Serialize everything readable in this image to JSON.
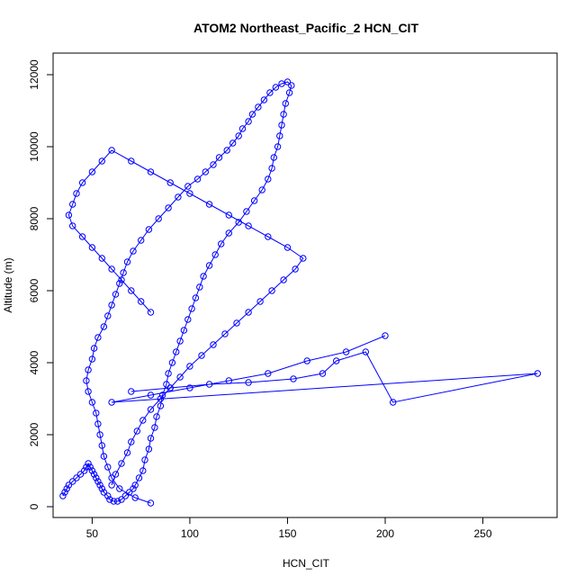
{
  "chart_data": {
    "type": "line",
    "title": "ATOM2 Northeast_Pacific_2 HCN_CIT",
    "xlabel": "HCN_CIT",
    "ylabel": "Altitude (m)",
    "xlim": [
      30,
      288
    ],
    "ylim": [
      -300,
      12600
    ],
    "xticks": [
      50,
      100,
      150,
      200,
      250
    ],
    "yticks": [
      0,
      2000,
      4000,
      6000,
      8000,
      10000,
      12000
    ],
    "grid": false,
    "legend": "none",
    "color": "#0000ff",
    "marker": "open-circle",
    "series": [
      {
        "x": [
          80,
          72,
          64,
          60,
          58,
          56,
          55,
          54,
          53,
          52,
          50,
          48,
          47,
          48,
          50,
          51,
          53,
          56,
          58,
          60,
          62,
          64,
          66,
          68,
          71,
          75,
          79,
          84,
          89,
          94,
          99,
          104,
          108,
          112,
          115,
          119,
          122,
          125,
          127,
          130,
          132,
          135,
          138,
          141,
          144,
          147,
          150,
          152,
          151,
          149,
          148,
          147,
          146,
          145,
          143,
          142,
          140,
          137,
          133,
          129,
          125,
          120,
          116,
          113,
          110,
          107,
          105,
          103,
          101,
          99,
          97,
          95,
          93,
          91,
          89,
          88,
          86,
          85,
          83,
          82,
          80,
          79,
          77,
          76,
          74,
          72,
          71,
          69,
          67,
          65,
          63,
          61,
          59,
          58,
          56,
          55,
          54,
          53,
          52,
          51,
          50,
          49,
          48,
          47,
          46,
          44,
          42,
          40,
          38,
          37,
          36,
          35
        ],
        "y": [
          100,
          250,
          500,
          800,
          1100,
          1400,
          1700,
          2000,
          2300,
          2600,
          2900,
          3200,
          3500,
          3800,
          4100,
          4400,
          4700,
          5000,
          5300,
          5600,
          5900,
          6200,
          6500,
          6800,
          7100,
          7400,
          7700,
          8000,
          8300,
          8600,
          8900,
          9100,
          9300,
          9500,
          9700,
          9900,
          10100,
          10300,
          10500,
          10700,
          10900,
          11100,
          11300,
          11500,
          11650,
          11750,
          11800,
          11700,
          11500,
          11200,
          10900,
          10600,
          10300,
          10000,
          9700,
          9400,
          9100,
          8800,
          8500,
          8200,
          7900,
          7600,
          7300,
          7000,
          6700,
          6400,
          6100,
          5800,
          5500,
          5200,
          4900,
          4600,
          4300,
          4000,
          3700,
          3400,
          3100,
          2800,
          2500,
          2200,
          1900,
          1600,
          1300,
          1000,
          800,
          600,
          500,
          400,
          300,
          200,
          150,
          150,
          200,
          300,
          400,
          500,
          600,
          700,
          800,
          900,
          1000,
          1100,
          1200,
          1100,
          1000,
          900,
          800,
          700,
          600,
          500,
          400,
          300
        ],
        "note_excluded": ""
      },
      {
        "x": [
          60,
          62,
          65,
          68,
          70,
          73,
          76,
          80,
          85,
          90,
          95,
          100,
          106,
          112,
          118,
          124,
          130,
          136,
          142,
          148,
          154,
          158,
          150,
          140,
          130,
          120,
          110,
          100,
          90,
          80,
          70,
          60,
          55,
          50,
          45,
          42,
          40,
          38,
          40,
          45,
          50,
          55,
          60,
          65,
          70,
          75,
          80
        ],
        "y": [
          600,
          900,
          1200,
          1500,
          1800,
          2100,
          2400,
          2700,
          3000,
          3300,
          3600,
          3900,
          4200,
          4500,
          4800,
          5100,
          5400,
          5700,
          6000,
          6300,
          6600,
          6900,
          7200,
          7500,
          7800,
          8100,
          8400,
          8700,
          9000,
          9300,
          9600,
          9900,
          9600,
          9300,
          9000,
          8700,
          8400,
          8100,
          7800,
          7500,
          7200,
          6900,
          6600,
          6300,
          6000,
          5700,
          5400
        ]
      },
      {
        "x": [
          200,
          180,
          160,
          140,
          120,
          100,
          80,
          60,
          278,
          204,
          190,
          175,
          168,
          153,
          130,
          110,
          90,
          70
        ],
        "y": [
          4750,
          4300,
          4050,
          3700,
          3500,
          3300,
          3100,
          2900,
          3700,
          2900,
          4300,
          4050,
          3700,
          3550,
          3450,
          3400,
          3300,
          3200
        ]
      }
    ]
  }
}
